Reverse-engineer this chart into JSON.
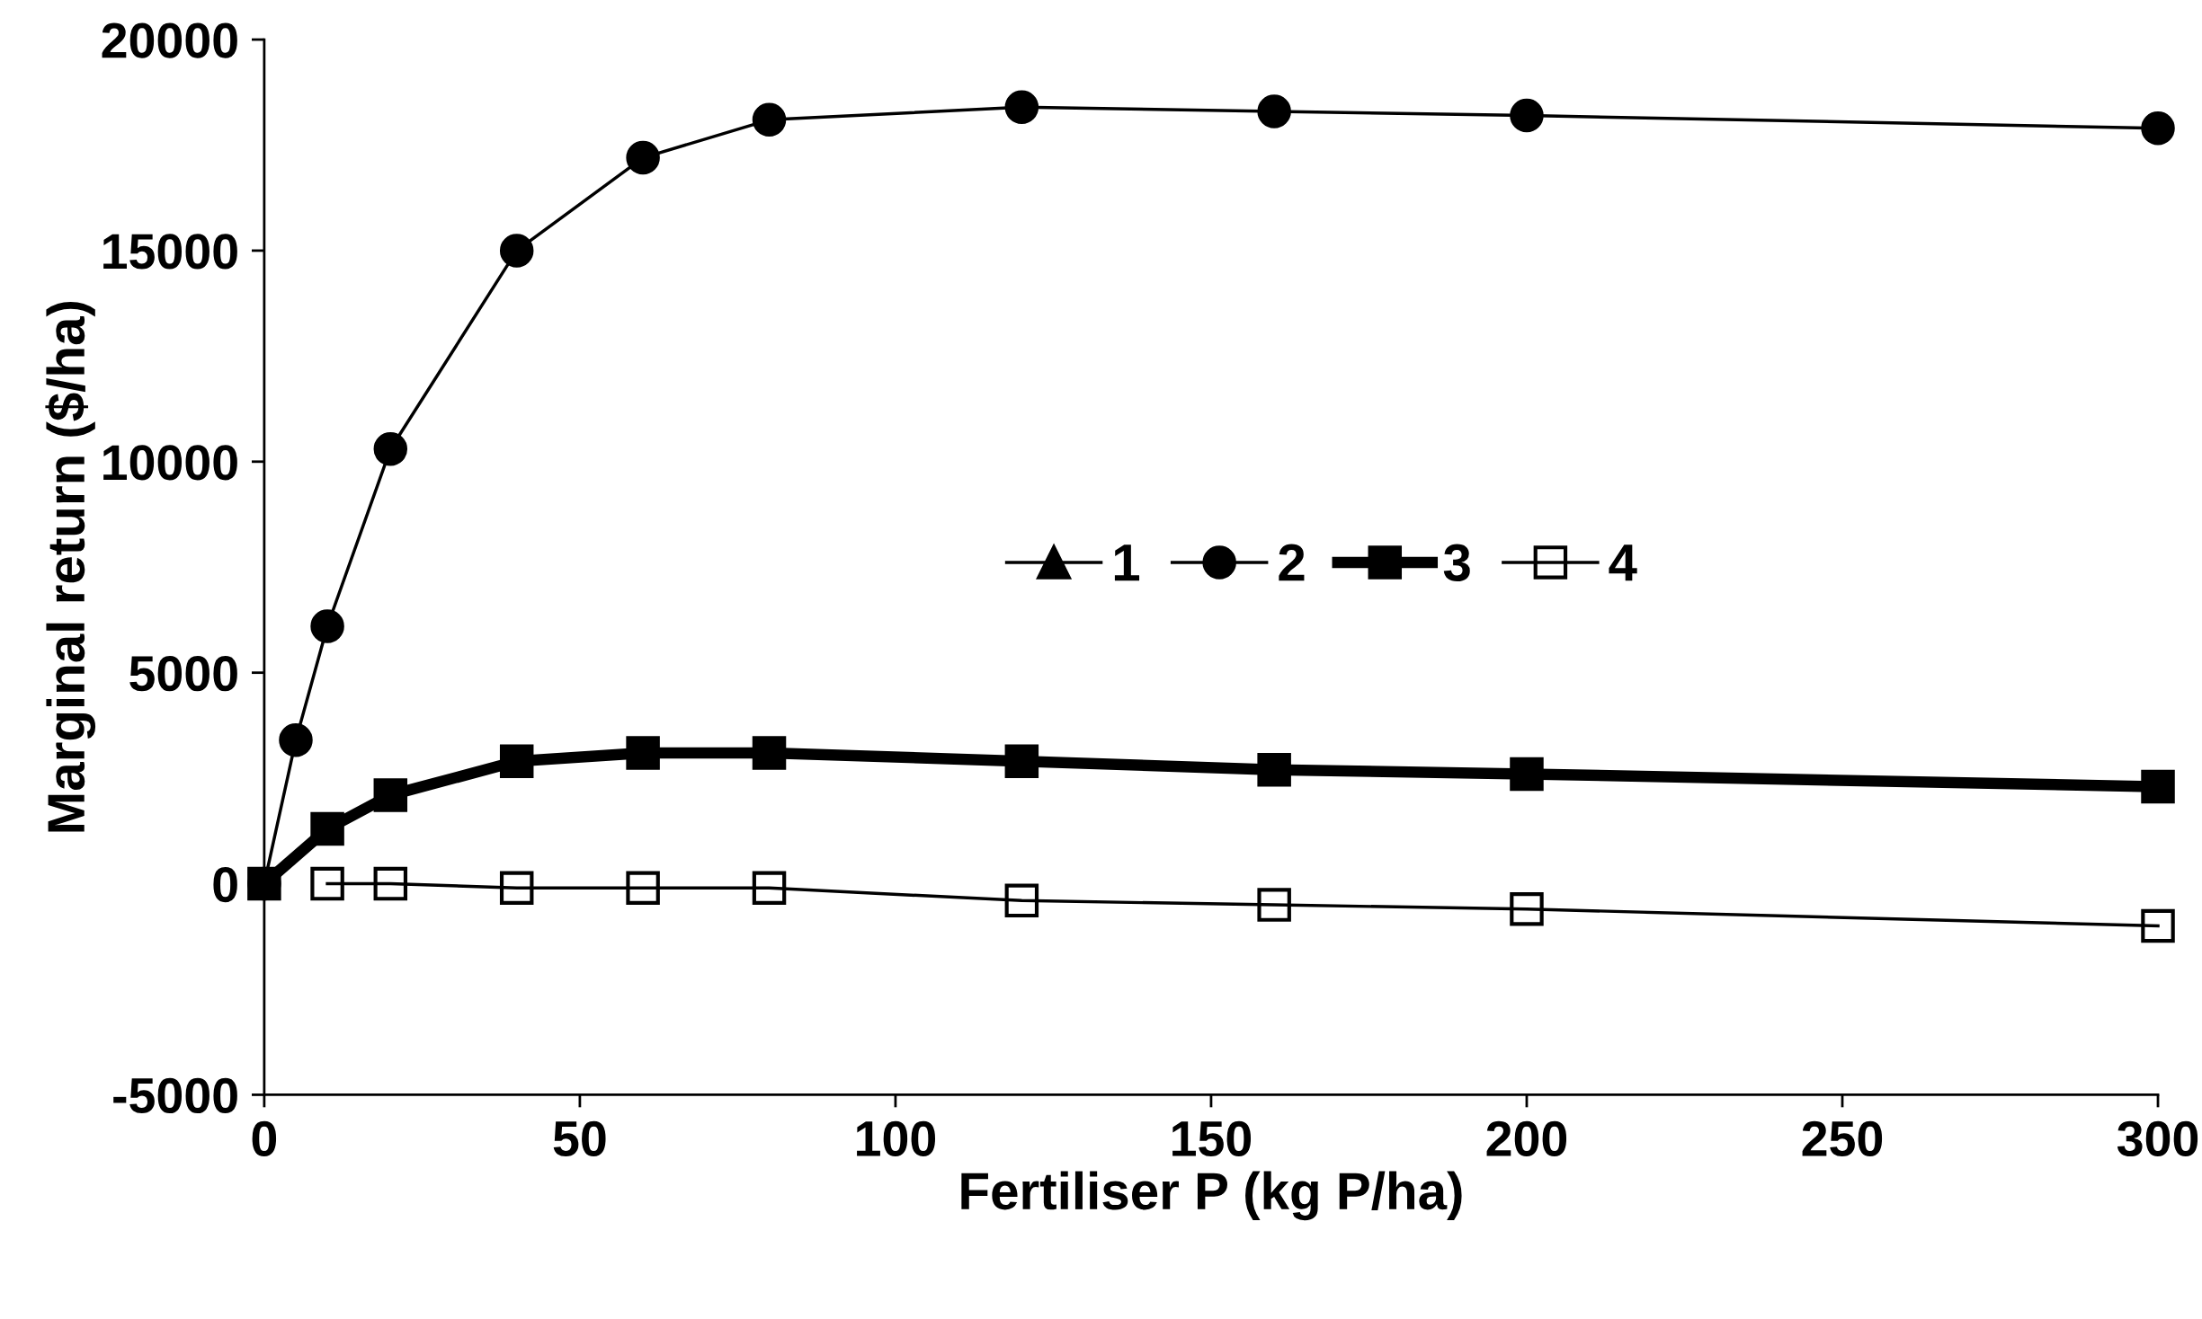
{
  "chart_data": {
    "type": "line",
    "xlabel": "Fertiliser P (kg P/ha)",
    "ylabel": "Marginal return ($/ha)",
    "xlim": [
      0,
      300
    ],
    "ylim": [
      -5000,
      20000
    ],
    "xticks": [
      0,
      50,
      100,
      150,
      200,
      250,
      300
    ],
    "yticks": [
      -5000,
      0,
      5000,
      10000,
      15000,
      20000
    ],
    "grid": false,
    "legend": "right",
    "series": [
      {
        "name": "1",
        "color": "#000000",
        "marker": "triangle",
        "values": [
          null
        ]
      },
      {
        "name": "2",
        "color": "#000000",
        "marker": "circle",
        "x": [
          0,
          5,
          10,
          20,
          40,
          60,
          80,
          120,
          160,
          200,
          300
        ],
        "values": [
          0,
          3400,
          6100,
          10300,
          15000,
          17200,
          18100,
          18400,
          18300,
          18200,
          17900
        ]
      },
      {
        "name": "3",
        "color": "#000000",
        "marker": "square",
        "x": [
          0,
          10,
          20,
          40,
          60,
          80,
          120,
          160,
          200,
          300
        ],
        "values": [
          0,
          1300,
          2100,
          2900,
          3100,
          3100,
          2900,
          2700,
          2600,
          2300
        ]
      },
      {
        "name": "4",
        "color": "#000000",
        "marker": "square",
        "x": [
          10,
          20,
          40,
          60,
          80,
          120,
          160,
          200,
          300
        ],
        "values": [
          0,
          0,
          -100,
          -100,
          -100,
          -400,
          -500,
          -600,
          -1000
        ]
      }
    ]
  }
}
